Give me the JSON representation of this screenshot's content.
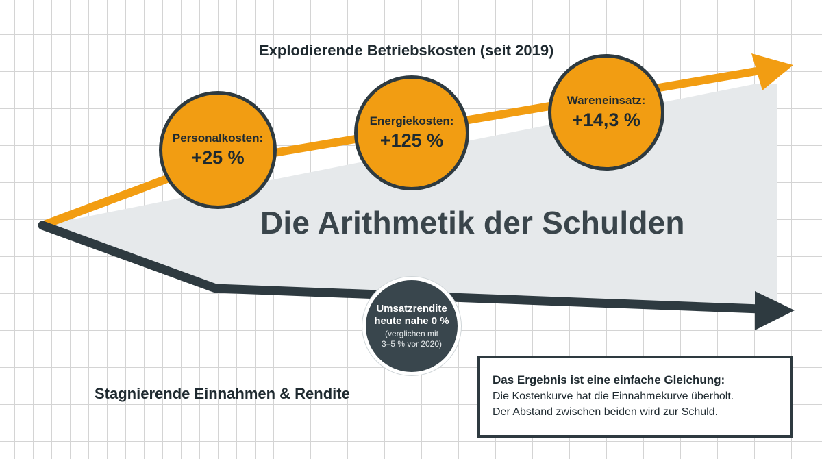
{
  "diagram": {
    "top_heading": "Explodierende Betriebskosten (seit 2019)",
    "bottom_heading": "Stagnierende Einnahmen & Rendite",
    "main_title": "Die Arithmetik der Schulden",
    "cost_bubbles": [
      {
        "name": "Personalkosten:",
        "value": "+25 %"
      },
      {
        "name": "Energiekosten:",
        "value": "+125 %"
      },
      {
        "name": "Wareneinsatz:",
        "value": "+14,3 %"
      }
    ],
    "margin_bubble": {
      "line1": "Umsatzrendite",
      "line2": "heute nahe 0 %",
      "note1": "(verglichen mit",
      "note2": "3–5 % vor 2020)"
    },
    "result": {
      "title": "Das Ergebnis ist eine einfache Gleichung:",
      "line1": "Die Kostenkurve hat die Einnahmekurve überholt.",
      "line2": "Der Abstand zwischen beiden wird zur Schuld."
    },
    "colors": {
      "cost_curve": "#f29d12",
      "revenue_curve": "#2e3a40",
      "gap_fill": "#e6e9eb",
      "bubble_border": "#2e3a40"
    },
    "icons": [
      "arrow-right-icon"
    ]
  }
}
